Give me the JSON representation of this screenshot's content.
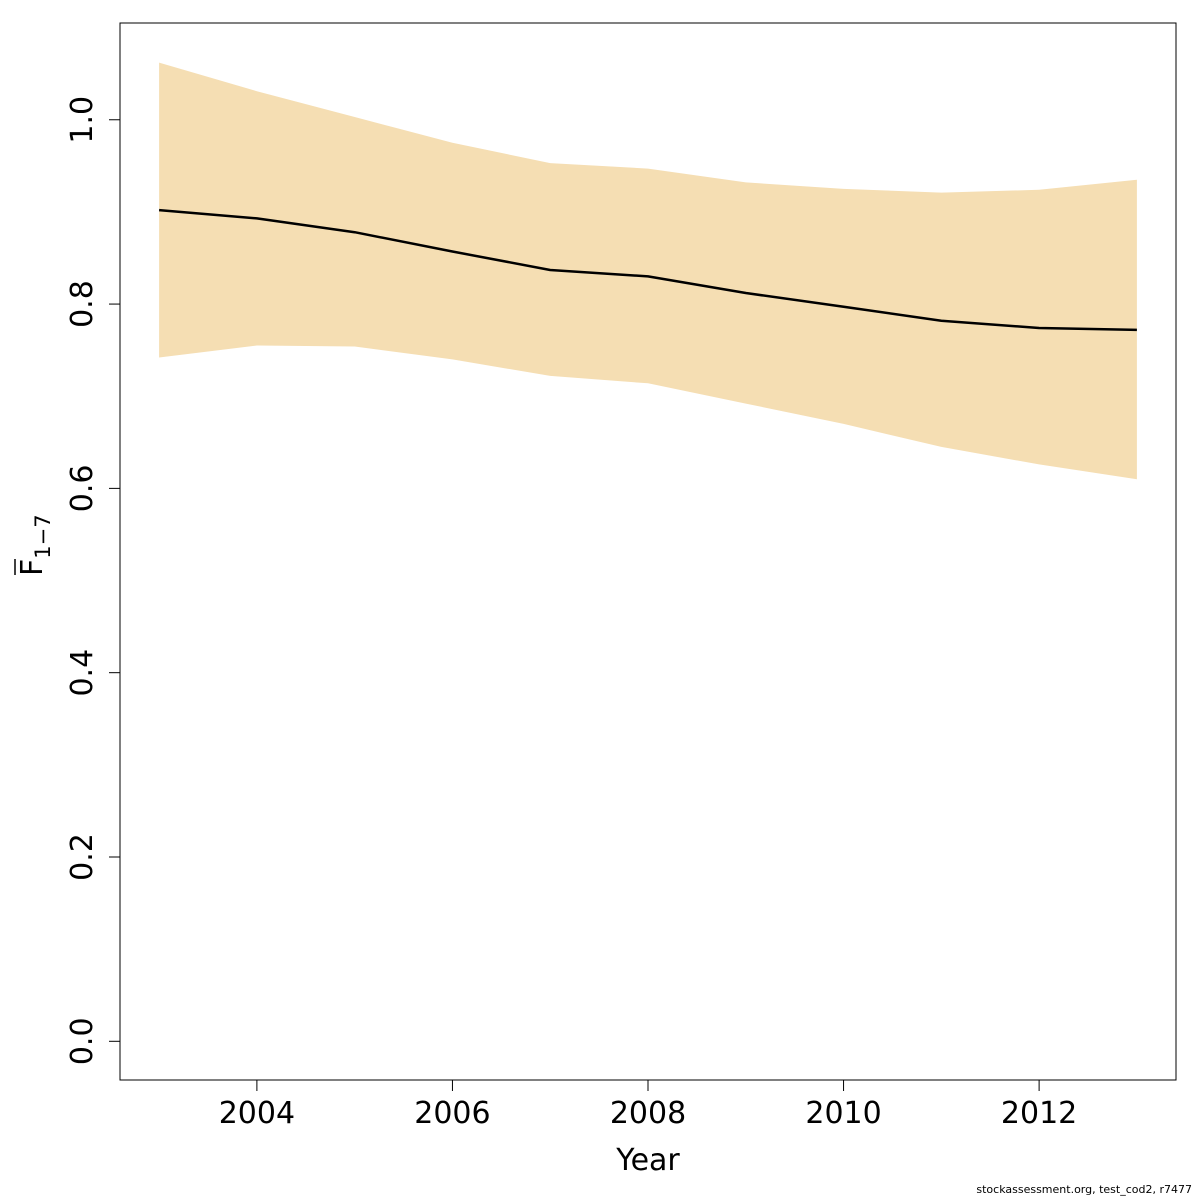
{
  "chart_data": {
    "type": "line",
    "xlabel": "Year",
    "ylabel": {
      "main": "F",
      "subscript": "1−7",
      "overbar": true
    },
    "xlim": [
      2002.6,
      2013.4
    ],
    "ylim": [
      -0.042,
      1.105
    ],
    "x_ticks": [
      2004,
      2006,
      2008,
      2010,
      2012
    ],
    "y_ticks": [
      0.0,
      0.2,
      0.4,
      0.6,
      0.8,
      1.0
    ],
    "y_tick_labels": [
      "0.0",
      "0.2",
      "0.4",
      "0.6",
      "0.8",
      "1.0"
    ],
    "x": [
      2003,
      2004,
      2005,
      2006,
      2007,
      2008,
      2009,
      2010,
      2011,
      2012,
      2013
    ],
    "series": [
      {
        "type": "line",
        "values": [
          0.902,
          0.893,
          0.878,
          0.857,
          0.837,
          0.83,
          0.812,
          0.797,
          0.782,
          0.774,
          0.772
        ]
      },
      {
        "type": "band",
        "lower": [
          0.742,
          0.755,
          0.754,
          0.74,
          0.722,
          0.714,
          0.692,
          0.67,
          0.645,
          0.626,
          0.61
        ],
        "upper": [
          1.062,
          1.031,
          1.003,
          0.975,
          0.953,
          0.947,
          0.932,
          0.925,
          0.921,
          0.924,
          0.935
        ]
      }
    ],
    "colors": {
      "band": "#f5deb3",
      "line": "#000000",
      "axis": "#000000"
    },
    "grid": false,
    "legend": "none"
  },
  "footer": "stockassessment.org, test_cod2, r7477"
}
